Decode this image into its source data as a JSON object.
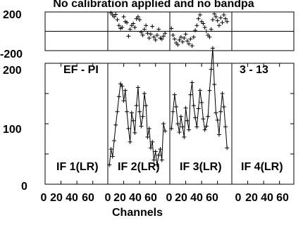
{
  "title": "No calibration applied and no bandpa",
  "baseline_label": "EF - PI",
  "channel_label": "3 - 13",
  "xlabel": "Channels",
  "chart_data": {
    "type": "line",
    "title": "No calibration applied and no bandpa",
    "xlabel": "Channels",
    "phase_yticks": [
      "200",
      "-200"
    ],
    "phase_ylim": [
      -200,
      200
    ],
    "amp_yticks": [
      "200",
      "100",
      "0"
    ],
    "amp_ylim": [
      0,
      200
    ],
    "xlim": [
      0,
      78
    ],
    "xtick_labels": [
      [
        "0",
        "20",
        "40",
        "60"
      ],
      [
        "0",
        "20",
        "40",
        "60"
      ],
      [
        "0",
        "20",
        "40",
        "60"
      ],
      [
        "0",
        "20",
        "40",
        "60"
      ]
    ],
    "panels": [
      {
        "name": "IF 1(LR)",
        "amplitude": [],
        "phase": []
      },
      {
        "name": "IF 2(LR)",
        "amplitude": [
          [
            2,
            32
          ],
          [
            4,
            58
          ],
          [
            6,
            46
          ],
          [
            8,
            72
          ],
          [
            10,
            98
          ],
          [
            12,
            120
          ],
          [
            14,
            145
          ],
          [
            16,
            166
          ],
          [
            18,
            162
          ],
          [
            20,
            138
          ],
          [
            22,
            155
          ],
          [
            24,
            120
          ],
          [
            26,
            92
          ],
          [
            28,
            70
          ],
          [
            30,
            118
          ],
          [
            32,
            105
          ],
          [
            34,
            85
          ],
          [
            36,
            130
          ],
          [
            38,
            160
          ],
          [
            40,
            120
          ],
          [
            42,
            96
          ],
          [
            44,
            112
          ],
          [
            46,
            150
          ],
          [
            48,
            130
          ],
          [
            50,
            78
          ],
          [
            52,
            92
          ],
          [
            54,
            60
          ],
          [
            56,
            70
          ],
          [
            58,
            40
          ],
          [
            60,
            54
          ],
          [
            62,
            32
          ],
          [
            64,
            48
          ],
          [
            66,
            58
          ],
          [
            68,
            40
          ],
          [
            70,
            100
          ],
          [
            72,
            88
          ]
        ],
        "phase": [
          [
            4,
            190
          ],
          [
            6,
            170
          ],
          [
            8,
            150
          ],
          [
            10,
            175
          ],
          [
            12,
            120
          ],
          [
            14,
            60
          ],
          [
            16,
            30
          ],
          [
            18,
            40
          ],
          [
            20,
            150
          ],
          [
            22,
            100
          ],
          [
            24,
            90
          ],
          [
            26,
            -50
          ],
          [
            28,
            20
          ],
          [
            30,
            60
          ],
          [
            32,
            80
          ],
          [
            34,
            40
          ],
          [
            36,
            130
          ],
          [
            38,
            150
          ],
          [
            40,
            120
          ],
          [
            42,
            -10
          ],
          [
            44,
            -40
          ],
          [
            46,
            20
          ],
          [
            48,
            60
          ],
          [
            50,
            -20
          ],
          [
            52,
            -70
          ],
          [
            54,
            -30
          ],
          [
            56,
            50
          ],
          [
            58,
            -60
          ],
          [
            60,
            -90
          ],
          [
            62,
            -40
          ],
          [
            64,
            20
          ],
          [
            66,
            -70
          ],
          [
            68,
            -80
          ],
          [
            70,
            -50
          ],
          [
            72,
            -20
          ]
        ]
      },
      {
        "name": "IF 3(LR)",
        "amplitude": [
          [
            2,
            92
          ],
          [
            4,
            120
          ],
          [
            6,
            148
          ],
          [
            8,
            128
          ],
          [
            10,
            100
          ],
          [
            12,
            86
          ],
          [
            14,
            112
          ],
          [
            16,
            95
          ],
          [
            18,
            78
          ],
          [
            20,
            126
          ],
          [
            22,
            105
          ],
          [
            24,
            90
          ],
          [
            26,
            148
          ],
          [
            28,
            168
          ],
          [
            30,
            130
          ],
          [
            32,
            110
          ],
          [
            34,
            95
          ],
          [
            36,
            125
          ],
          [
            38,
            155
          ],
          [
            40,
            135
          ],
          [
            42,
            108
          ],
          [
            44,
            90
          ],
          [
            46,
            96
          ],
          [
            48,
            112
          ],
          [
            50,
            155
          ],
          [
            52,
            190
          ],
          [
            54,
            225
          ],
          [
            56,
            165
          ],
          [
            58,
            118
          ],
          [
            60,
            106
          ],
          [
            62,
            82
          ],
          [
            64,
            120
          ],
          [
            66,
            150
          ],
          [
            68,
            128
          ],
          [
            70,
            95
          ],
          [
            72,
            60
          ]
        ],
        "phase": [
          [
            2,
            30
          ],
          [
            4,
            -40
          ],
          [
            6,
            -80
          ],
          [
            8,
            -120
          ],
          [
            10,
            -140
          ],
          [
            12,
            -90
          ],
          [
            14,
            -60
          ],
          [
            16,
            -110
          ],
          [
            18,
            -70
          ],
          [
            20,
            -30
          ],
          [
            22,
            -100
          ],
          [
            24,
            -130
          ],
          [
            26,
            -80
          ],
          [
            28,
            -150
          ],
          [
            30,
            -60
          ],
          [
            32,
            10
          ],
          [
            34,
            60
          ],
          [
            36,
            130
          ],
          [
            38,
            170
          ],
          [
            40,
            100
          ],
          [
            42,
            80
          ],
          [
            44,
            40
          ],
          [
            46,
            0
          ],
          [
            48,
            -40
          ],
          [
            50,
            -60
          ],
          [
            52,
            20
          ],
          [
            54,
            120
          ],
          [
            56,
            180
          ],
          [
            58,
            150
          ],
          [
            60,
            110
          ],
          [
            62,
            60
          ],
          [
            64,
            140
          ],
          [
            66,
            90
          ],
          [
            68,
            170
          ],
          [
            70,
            130
          ],
          [
            72,
            100
          ]
        ]
      },
      {
        "name": "IF 4(LR)",
        "amplitude": [],
        "phase": []
      }
    ]
  }
}
